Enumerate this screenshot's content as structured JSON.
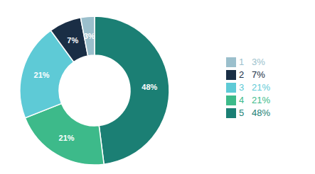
{
  "chart_data": {
    "type": "pie",
    "categories": [
      "5   48%",
      "4   21%",
      "3   21%",
      "2   7%",
      "1   3%"
    ],
    "values": [
      48,
      21,
      21,
      7,
      3
    ],
    "value_labels": [
      "48%",
      "21%",
      "21%",
      "7%",
      "3%"
    ],
    "colors": [
      "#1b7f74",
      "#3dba8a",
      "#5ecad6",
      "#1a2e45",
      "#9bbfcc"
    ],
    "data_labels": true,
    "legend": "right"
  }
}
